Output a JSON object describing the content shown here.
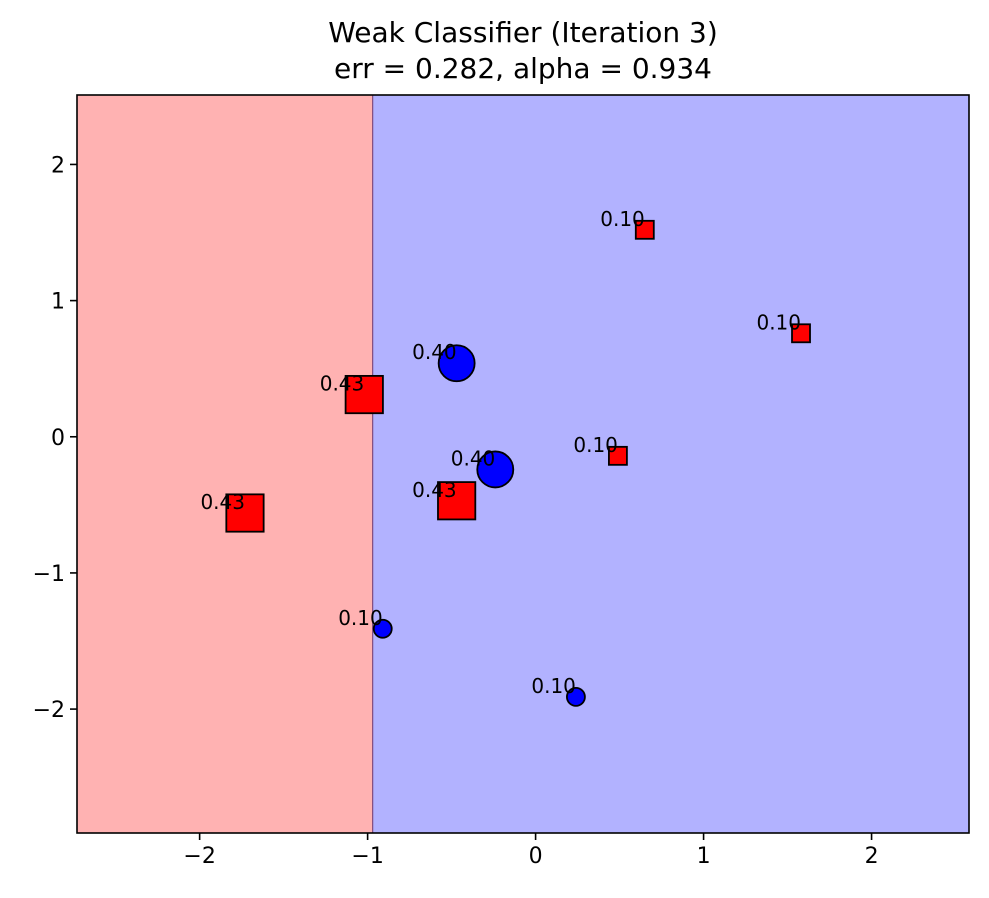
{
  "chart_data": {
    "type": "scatter",
    "title": "Weak Classifier (Iteration 3)",
    "subtitle": "err = 0.282, alpha = 0.934",
    "xlabel": "",
    "ylabel": "",
    "xlim": [
      -2.73,
      2.58
    ],
    "ylim": [
      -2.91,
      2.51
    ],
    "xticks": [
      -2,
      -1,
      0,
      1,
      2
    ],
    "yticks": [
      -2,
      -1,
      0,
      1,
      2
    ],
    "xtick_labels": [
      "−2",
      "−1",
      "0",
      "1",
      "2"
    ],
    "ytick_labels": [
      "−2",
      "−1",
      "0",
      "1",
      "2"
    ],
    "grid": false,
    "decision_stump": {
      "feature": "x",
      "threshold": -0.97,
      "left_color": "#ffb2b2",
      "right_color": "#b2b2ff",
      "boundary_color": "#7f4a7f"
    },
    "points": [
      {
        "x": 0.65,
        "y": 1.52,
        "class": "red",
        "marker": "square",
        "weight": 0.1,
        "label": "0.10"
      },
      {
        "x": 1.58,
        "y": 0.76,
        "class": "red",
        "marker": "square",
        "weight": 0.1,
        "label": "0.10"
      },
      {
        "x": -0.47,
        "y": 0.54,
        "class": "blue",
        "marker": "circle",
        "weight": 0.4,
        "label": "0.40"
      },
      {
        "x": -1.02,
        "y": 0.31,
        "class": "red",
        "marker": "square",
        "weight": 0.43,
        "label": "0.43"
      },
      {
        "x": 0.49,
        "y": -0.14,
        "class": "red",
        "marker": "square",
        "weight": 0.1,
        "label": "0.10"
      },
      {
        "x": -0.24,
        "y": -0.24,
        "class": "blue",
        "marker": "circle",
        "weight": 0.4,
        "label": "0.40"
      },
      {
        "x": -1.73,
        "y": -0.56,
        "class": "red",
        "marker": "square",
        "weight": 0.43,
        "label": "0.43"
      },
      {
        "x": -0.47,
        "y": -0.47,
        "class": "red",
        "marker": "square",
        "weight": 0.43,
        "label": "0.43"
      },
      {
        "x": -0.91,
        "y": -1.41,
        "class": "blue",
        "marker": "circle",
        "weight": 0.1,
        "label": "0.10"
      },
      {
        "x": 0.24,
        "y": -1.91,
        "class": "blue",
        "marker": "circle",
        "weight": 0.1,
        "label": "0.10"
      }
    ],
    "colors": {
      "red": "#ff0000",
      "blue": "#0000ff",
      "edge": "#000000"
    }
  }
}
